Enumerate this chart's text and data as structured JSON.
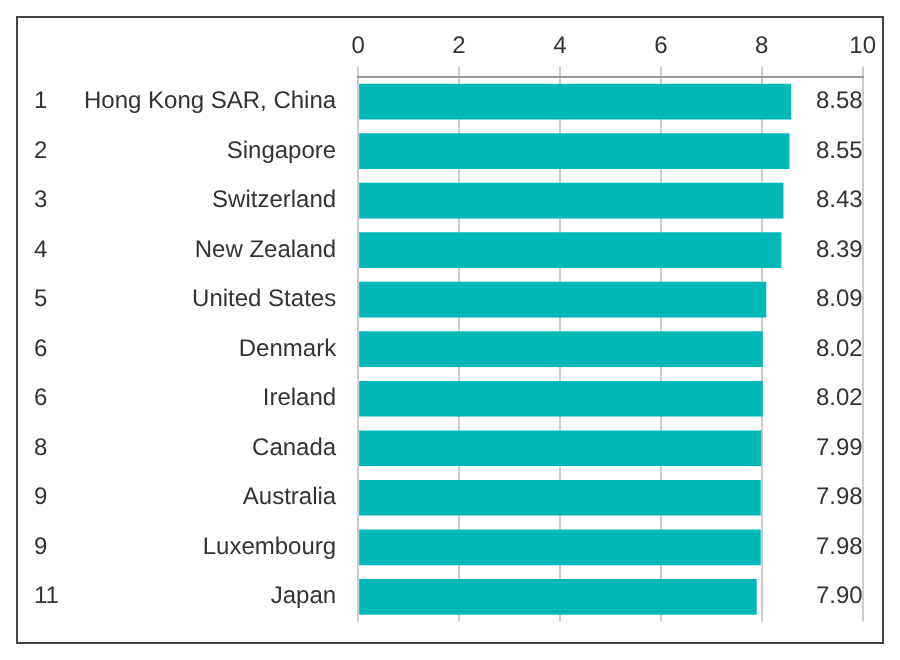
{
  "chart_data": {
    "type": "bar",
    "orientation": "horizontal",
    "categories": [
      "Hong Kong SAR, China",
      "Singapore",
      "Switzerland",
      "New Zealand",
      "United States",
      "Denmark",
      "Ireland",
      "Canada",
      "Australia",
      "Luxembourg",
      "Japan"
    ],
    "values": [
      8.58,
      8.55,
      8.43,
      8.39,
      8.09,
      8.02,
      8.02,
      7.99,
      7.98,
      7.98,
      7.9
    ],
    "value_labels": [
      "8.58",
      "8.55",
      "8.43",
      "8.39",
      "8.09",
      "8.02",
      "8.02",
      "7.99",
      "7.98",
      "7.98",
      "7.90"
    ],
    "color": "#00b8b8",
    "xlim": [
      0,
      10
    ],
    "xticks": [
      0,
      2,
      4,
      6,
      8,
      10
    ],
    "grid": "x",
    "annotations": [
      "1",
      "2",
      "3",
      "4",
      "5",
      "6",
      "6",
      "8",
      "9",
      "9",
      "11"
    ]
  }
}
